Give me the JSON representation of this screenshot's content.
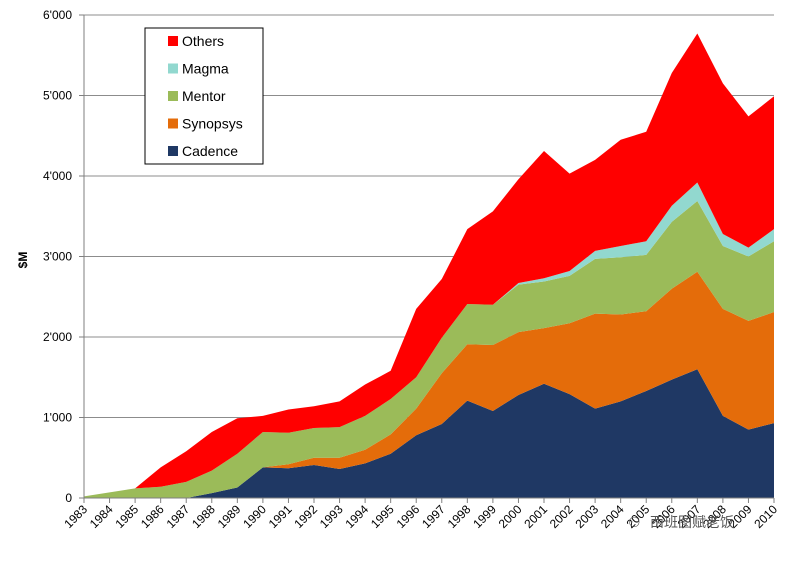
{
  "chart_data": {
    "type": "area",
    "stacked": true,
    "title": "",
    "xlabel": "",
    "ylabel": "$M",
    "ylim": [
      0,
      6000
    ],
    "yticks": [
      0,
      1000,
      2000,
      3000,
      4000,
      5000,
      6000
    ],
    "ytick_labels": [
      "0",
      "1'000",
      "2'000",
      "3'000",
      "4'000",
      "5'000",
      "6'000"
    ],
    "categories": [
      "1983",
      "1984",
      "1985",
      "1986",
      "1987",
      "1988",
      "1989",
      "1990",
      "1991",
      "1992",
      "1993",
      "1994",
      "1995",
      "1996",
      "1997",
      "1998",
      "1999",
      "2000",
      "2001",
      "2002",
      "2003",
      "2004",
      "2005",
      "2006",
      "2007",
      "2008",
      "2009",
      "2010"
    ],
    "grid": true,
    "legend_position": "top-left",
    "series": [
      {
        "name": "Cadence",
        "color": "#1f3864",
        "values": [
          0,
          0,
          0,
          0,
          0,
          60,
          130,
          380,
          370,
          410,
          360,
          430,
          550,
          780,
          920,
          1210,
          1080,
          1280,
          1420,
          1290,
          1110,
          1200,
          1330,
          1470,
          1600,
          1020,
          850,
          930
        ]
      },
      {
        "name": "Synopsys",
        "color": "#e46c0a",
        "values": [
          0,
          0,
          0,
          0,
          0,
          0,
          0,
          0,
          50,
          90,
          140,
          170,
          240,
          330,
          630,
          700,
          820,
          780,
          690,
          880,
          1180,
          1080,
          990,
          1130,
          1210,
          1330,
          1350,
          1380
        ]
      },
      {
        "name": "Mentor",
        "color": "#9bbb59",
        "values": [
          20,
          70,
          120,
          140,
          200,
          280,
          420,
          440,
          390,
          370,
          380,
          420,
          440,
          390,
          440,
          500,
          500,
          590,
          580,
          590,
          680,
          710,
          700,
          830,
          880,
          780,
          800,
          880
        ]
      },
      {
        "name": "Magma",
        "color": "#92d8cf",
        "values": [
          0,
          0,
          0,
          0,
          0,
          0,
          0,
          0,
          0,
          0,
          0,
          0,
          0,
          0,
          0,
          0,
          0,
          20,
          40,
          60,
          100,
          140,
          170,
          200,
          230,
          150,
          110,
          150
        ]
      },
      {
        "name": "Others",
        "color": "#ff0000",
        "values": [
          0,
          0,
          0,
          240,
          380,
          480,
          440,
          200,
          290,
          270,
          320,
          390,
          350,
          850,
          730,
          930,
          1160,
          1290,
          1580,
          1210,
          1130,
          1320,
          1360,
          1650,
          1850,
          1870,
          1630,
          1650
        ]
      }
    ],
    "legend_order": [
      "Others",
      "Magma",
      "Mentor",
      "Synopsys",
      "Cadence"
    ]
  },
  "watermark": {
    "label": "西班图赋老饭"
  }
}
